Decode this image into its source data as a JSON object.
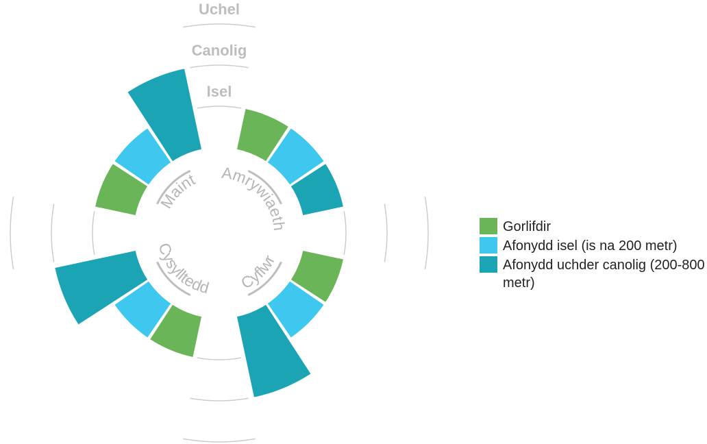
{
  "chart_data": {
    "type": "radial_bar",
    "categories": [
      "Maint",
      "Amrywiaeth",
      "Cyflwr",
      "Cysylltedd"
    ],
    "series": [
      {
        "name": "Gorlifdir",
        "color": "#6ab558",
        "values": [
          1,
          1,
          1,
          1
        ]
      },
      {
        "name": "Afonydd isel (is na 200 metr)",
        "color": "#3ec8f0",
        "values": [
          1,
          1,
          1,
          1
        ]
      },
      {
        "name": "Afonydd uchder canolig (200-800 metr)",
        "color": "#1ba5b4",
        "values": [
          2,
          1,
          2,
          2
        ]
      }
    ],
    "ylim": [
      0,
      3
    ],
    "yticks": [
      {
        "value": 1,
        "label": "Isel"
      },
      {
        "value": 2,
        "label": "Canolig"
      },
      {
        "value": 3,
        "label": "Uchel"
      }
    ],
    "legend": "right"
  }
}
